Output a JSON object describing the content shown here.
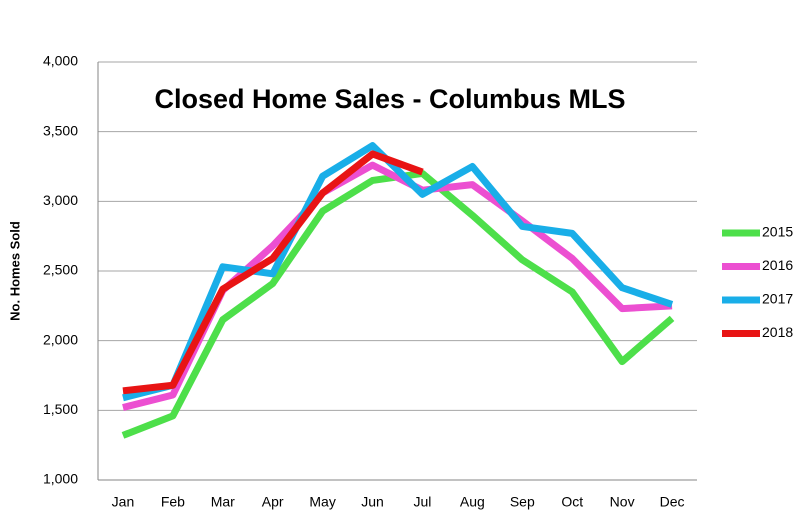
{
  "chart_data": {
    "type": "line",
    "title": "Closed Home Sales - Columbus MLS",
    "y_label": "No. Homes Sold",
    "categories": [
      "Jan",
      "Feb",
      "Mar",
      "Apr",
      "May",
      "Jun",
      "Jul",
      "Aug",
      "Sep",
      "Oct",
      "Nov",
      "Dec"
    ],
    "series": [
      {
        "name": "2015",
        "color": "#4ddf4a",
        "values": [
          1320,
          1460,
          2150,
          2410,
          2930,
          3150,
          3200,
          2900,
          2580,
          2350,
          1850,
          2160
        ]
      },
      {
        "name": "2016",
        "color": "#ec4fd1",
        "values": [
          1520,
          1610,
          2360,
          2680,
          3060,
          3260,
          3080,
          3120,
          2860,
          2590,
          2230,
          2250
        ]
      },
      {
        "name": "2017",
        "color": "#19aee8",
        "values": [
          1590,
          1680,
          2530,
          2480,
          3180,
          3400,
          3050,
          3250,
          2820,
          2770,
          2380,
          2260
        ]
      },
      {
        "name": "2018",
        "color": "#e81414",
        "values": [
          1640,
          1680,
          2370,
          2590,
          3060,
          3340,
          3210,
          null,
          null,
          null,
          null,
          null
        ]
      }
    ],
    "ylim": [
      1000,
      4000
    ],
    "yticks": [
      {
        "value": 1000,
        "label": "1,000"
      },
      {
        "value": 1500,
        "label": "1,500"
      },
      {
        "value": 2000,
        "label": "2,000"
      },
      {
        "value": 2500,
        "label": "2,500"
      },
      {
        "value": 3000,
        "label": "3,000"
      },
      {
        "value": 3500,
        "label": "3,500"
      },
      {
        "value": 4000,
        "label": "4,000"
      }
    ],
    "grid": true,
    "legend": "right"
  }
}
